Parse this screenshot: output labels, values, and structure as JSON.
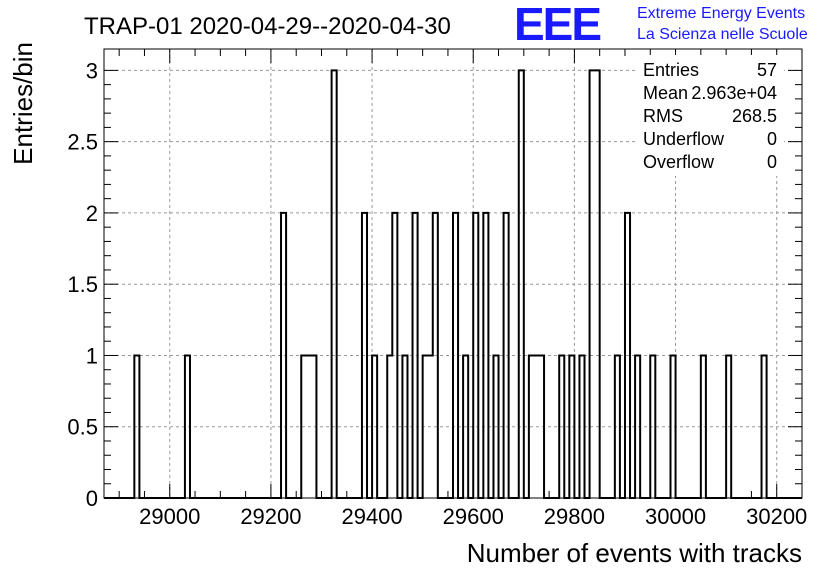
{
  "chart_data": {
    "type": "histogram",
    "title": "TRAP-01 2020-04-29--2020-04-30",
    "xlabel": "Number of events with tracks",
    "ylabel": "Entries/bin",
    "xlim": [
      28870,
      30250
    ],
    "ylim": [
      0,
      3.15
    ],
    "bin_width": 10,
    "x_ticks": [
      29000,
      29200,
      29400,
      29600,
      29800,
      30000,
      30200
    ],
    "y_ticks": [
      0,
      0.5,
      1,
      1.5,
      2,
      2.5,
      3
    ],
    "y_tick_labels": [
      "0",
      "0.5",
      "1",
      "1.5",
      "2",
      "2.5",
      "3"
    ],
    "grid": true,
    "bins": [
      {
        "x": 28930,
        "count": 1
      },
      {
        "x": 29030,
        "count": 1
      },
      {
        "x": 29220,
        "count": 2
      },
      {
        "x": 29260,
        "count": 1
      },
      {
        "x": 29270,
        "count": 1
      },
      {
        "x": 29280,
        "count": 1
      },
      {
        "x": 29320,
        "count": 3
      },
      {
        "x": 29380,
        "count": 2
      },
      {
        "x": 29400,
        "count": 1
      },
      {
        "x": 29430,
        "count": 1
      },
      {
        "x": 29440,
        "count": 2
      },
      {
        "x": 29460,
        "count": 1
      },
      {
        "x": 29480,
        "count": 2
      },
      {
        "x": 29500,
        "count": 1
      },
      {
        "x": 29510,
        "count": 1
      },
      {
        "x": 29520,
        "count": 2
      },
      {
        "x": 29560,
        "count": 2
      },
      {
        "x": 29580,
        "count": 1
      },
      {
        "x": 29600,
        "count": 2
      },
      {
        "x": 29620,
        "count": 2
      },
      {
        "x": 29640,
        "count": 1
      },
      {
        "x": 29660,
        "count": 2
      },
      {
        "x": 29690,
        "count": 3
      },
      {
        "x": 29710,
        "count": 1
      },
      {
        "x": 29720,
        "count": 1
      },
      {
        "x": 29730,
        "count": 1
      },
      {
        "x": 29770,
        "count": 1
      },
      {
        "x": 29790,
        "count": 1
      },
      {
        "x": 29810,
        "count": 1
      },
      {
        "x": 29830,
        "count": 3
      },
      {
        "x": 29840,
        "count": 3
      },
      {
        "x": 29880,
        "count": 1
      },
      {
        "x": 29900,
        "count": 2
      },
      {
        "x": 29920,
        "count": 1
      },
      {
        "x": 29950,
        "count": 1
      },
      {
        "x": 29990,
        "count": 1
      },
      {
        "x": 30050,
        "count": 1
      },
      {
        "x": 30100,
        "count": 1
      },
      {
        "x": 30170,
        "count": 1
      }
    ],
    "stats_box": {
      "rows": [
        {
          "label": "Entries",
          "value": "57"
        },
        {
          "label": "Mean",
          "value": "2.963e+04"
        },
        {
          "label": "RMS",
          "value": "268.5"
        },
        {
          "label": "Underflow",
          "value": "0"
        },
        {
          "label": "Overflow",
          "value": "0"
        }
      ]
    },
    "logo": {
      "letters": "EEE",
      "line1": "Extreme Energy Events",
      "line2": "La Scienza nelle Scuole",
      "color": "#1a1aff"
    },
    "colors": {
      "line": "#000000",
      "grid": "#9a9a9a",
      "background": "#ffffff"
    }
  }
}
